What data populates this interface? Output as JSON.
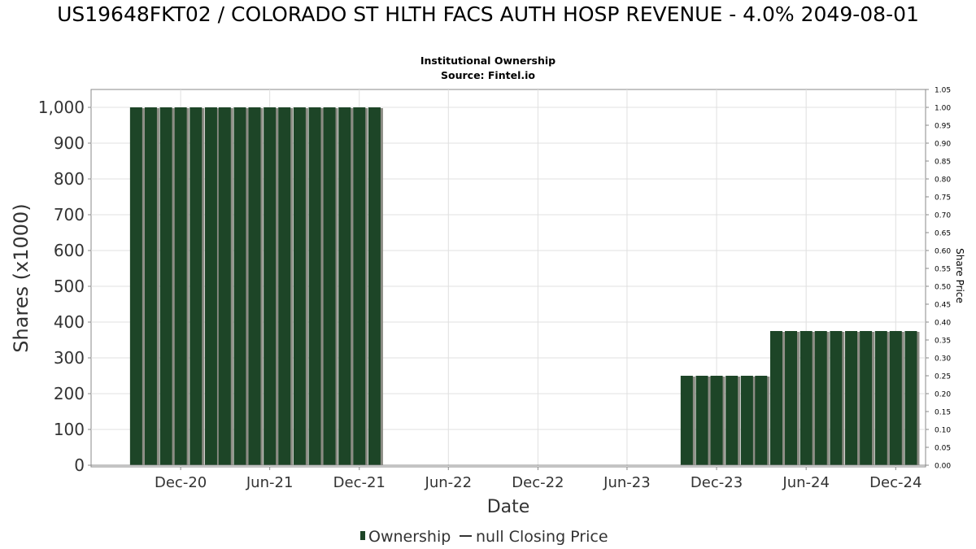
{
  "chart_data": {
    "type": "bar",
    "title": "US19648FKT02 / COLORADO ST HLTH FACS AUTH HOSP REVENUE - 4.0% 2049-08-01",
    "subtitles": [
      "Institutional Ownership",
      "Source: Fintel.io"
    ],
    "xlabel": "Date",
    "ylabel": "Shares (x1000)",
    "y2label": "Share Price",
    "ylim": [
      0,
      1050
    ],
    "y2lim": [
      0,
      1.05
    ],
    "x_range": [
      "2020-06-01",
      "2025-01-31"
    ],
    "x_tick_labels": [
      {
        "label": "Dec-20",
        "date": "2020-12-01"
      },
      {
        "label": "Jun-21",
        "date": "2021-06-01"
      },
      {
        "label": "Dec-21",
        "date": "2021-12-01"
      },
      {
        "label": "Jun-22",
        "date": "2022-06-01"
      },
      {
        "label": "Dec-22",
        "date": "2022-12-01"
      },
      {
        "label": "Jun-23",
        "date": "2023-06-01"
      },
      {
        "label": "Dec-23",
        "date": "2023-12-01"
      },
      {
        "label": "Jun-24",
        "date": "2024-06-01"
      },
      {
        "label": "Dec-24",
        "date": "2024-12-01"
      }
    ],
    "y_tick_labels": [
      "0",
      "100",
      "200",
      "300",
      "400",
      "500",
      "600",
      "700",
      "800",
      "900",
      "1,000"
    ],
    "y2_tick_labels": [
      "0.00",
      "0.05",
      "0.10",
      "0.15",
      "0.20",
      "0.25",
      "0.30",
      "0.35",
      "0.40",
      "0.45",
      "0.50",
      "0.55",
      "0.60",
      "0.65",
      "0.70",
      "0.75",
      "0.80",
      "0.85",
      "0.90",
      "0.95",
      "1.00",
      "1.05"
    ],
    "grid": true,
    "legend_position": "bottom",
    "series": [
      {
        "name": "Ownership",
        "color": "#1d4527",
        "points": [
          {
            "x": "2020-09-01",
            "y": 1000
          },
          {
            "x": "2020-10-01",
            "y": 1000
          },
          {
            "x": "2020-11-01",
            "y": 1000
          },
          {
            "x": "2020-12-01",
            "y": 1000
          },
          {
            "x": "2021-01-01",
            "y": 1000
          },
          {
            "x": "2021-02-01",
            "y": 1000
          },
          {
            "x": "2021-03-01",
            "y": 1000
          },
          {
            "x": "2021-04-01",
            "y": 1000
          },
          {
            "x": "2021-05-01",
            "y": 1000
          },
          {
            "x": "2021-06-01",
            "y": 1000
          },
          {
            "x": "2021-07-01",
            "y": 1000
          },
          {
            "x": "2021-08-01",
            "y": 1000
          },
          {
            "x": "2021-09-01",
            "y": 1000
          },
          {
            "x": "2021-10-01",
            "y": 1000
          },
          {
            "x": "2021-11-01",
            "y": 1000
          },
          {
            "x": "2021-12-01",
            "y": 1000
          },
          {
            "x": "2022-01-01",
            "y": 1000
          },
          {
            "x": "2023-10-01",
            "y": 250
          },
          {
            "x": "2023-11-01",
            "y": 250
          },
          {
            "x": "2023-12-01",
            "y": 250
          },
          {
            "x": "2024-01-01",
            "y": 250
          },
          {
            "x": "2024-02-01",
            "y": 250
          },
          {
            "x": "2024-03-01",
            "y": 250
          },
          {
            "x": "2024-04-01",
            "y": 375
          },
          {
            "x": "2024-05-01",
            "y": 375
          },
          {
            "x": "2024-06-01",
            "y": 375
          },
          {
            "x": "2024-07-01",
            "y": 375
          },
          {
            "x": "2024-08-01",
            "y": 375
          },
          {
            "x": "2024-09-01",
            "y": 375
          },
          {
            "x": "2024-10-01",
            "y": 375
          },
          {
            "x": "2024-11-01",
            "y": 375
          },
          {
            "x": "2024-12-01",
            "y": 375
          },
          {
            "x": "2025-01-01",
            "y": 375
          }
        ]
      },
      {
        "name": "null Closing Price",
        "color": "#333333",
        "points": []
      }
    ]
  }
}
